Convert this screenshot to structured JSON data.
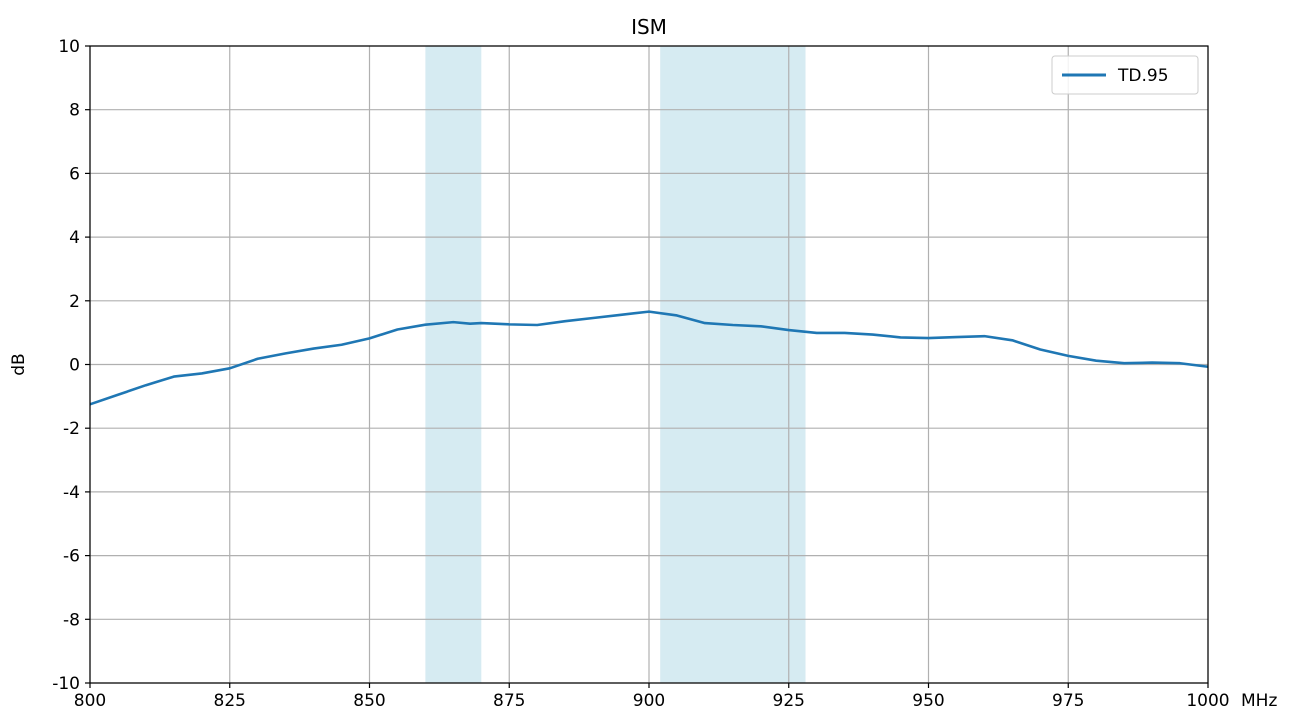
{
  "chart_data": {
    "type": "line",
    "title": "ISM",
    "xlabel": "",
    "x_unit": "MHz",
    "ylabel": "dB",
    "xlim": [
      800,
      1000
    ],
    "ylim": [
      -10,
      10
    ],
    "xticks": [
      800,
      825,
      850,
      875,
      900,
      925,
      950,
      975,
      1000
    ],
    "yticks": [
      -10,
      -8,
      -6,
      -4,
      -2,
      0,
      2,
      4,
      6,
      8,
      10
    ],
    "grid": true,
    "legend_position": "top-right",
    "shaded_bands": [
      {
        "x0": 860,
        "x1": 870,
        "color": "#add8e6"
      },
      {
        "x0": 902,
        "x1": 928,
        "color": "#add8e6"
      }
    ],
    "series": [
      {
        "name": "TD.95",
        "color": "#1f77b4",
        "x": [
          800,
          805,
          810,
          815,
          820,
          825,
          830,
          835,
          840,
          845,
          850,
          855,
          860,
          865,
          868,
          870,
          875,
          880,
          885,
          890,
          895,
          900,
          905,
          910,
          915,
          920,
          925,
          930,
          935,
          940,
          945,
          950,
          955,
          960,
          965,
          970,
          975,
          980,
          985,
          990,
          995,
          1000
        ],
        "y": [
          -1.25,
          -0.95,
          -0.65,
          -0.38,
          -0.28,
          -0.12,
          0.18,
          0.35,
          0.5,
          0.62,
          0.82,
          1.1,
          1.25,
          1.33,
          1.28,
          1.3,
          1.26,
          1.24,
          1.36,
          1.46,
          1.56,
          1.66,
          1.54,
          1.3,
          1.24,
          1.2,
          1.08,
          0.99,
          0.99,
          0.94,
          0.85,
          0.83,
          0.86,
          0.89,
          0.76,
          0.47,
          0.27,
          0.12,
          0.04,
          0.06,
          0.04,
          -0.07
        ]
      }
    ]
  }
}
